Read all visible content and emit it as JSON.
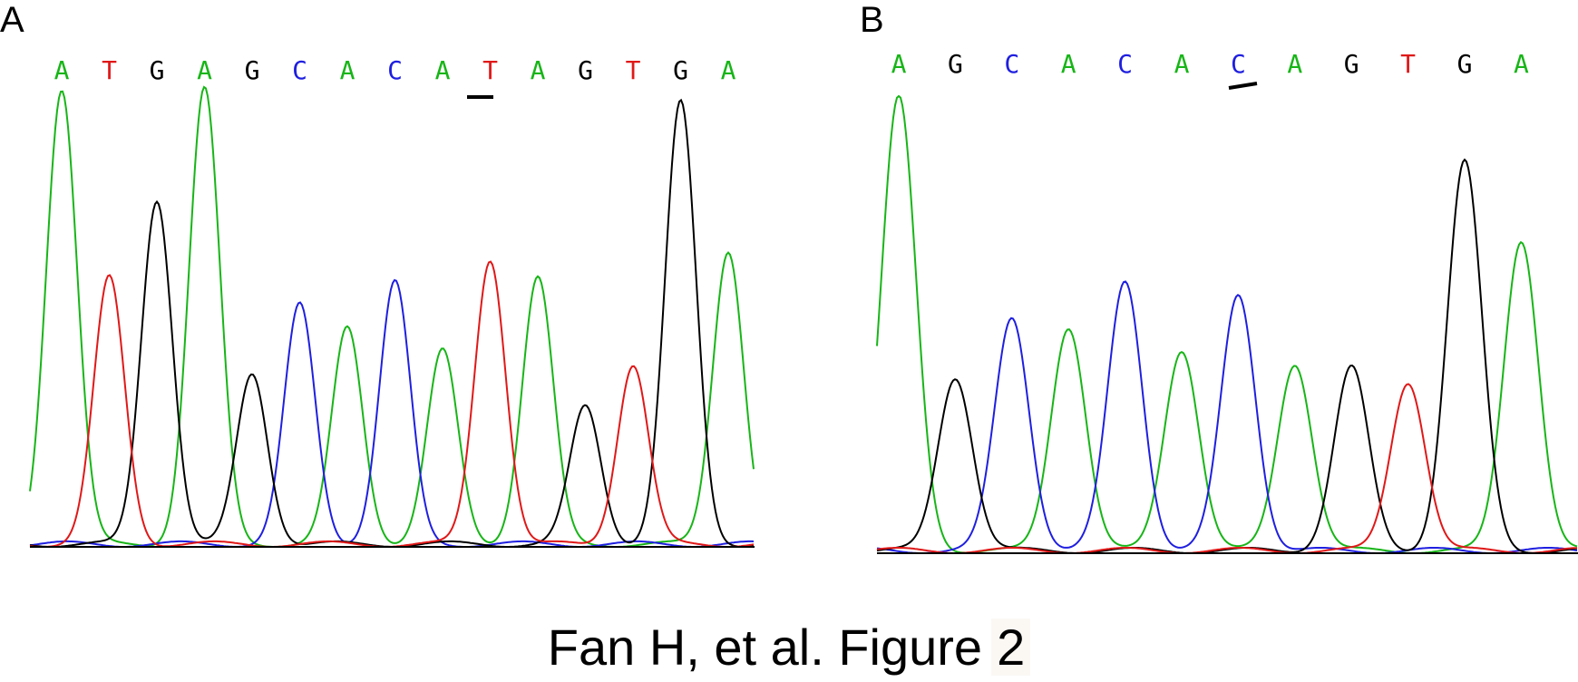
{
  "colors": {
    "A": "#17b517",
    "T": "#e01818",
    "G": "#000000",
    "C": "#1f1fe0"
  },
  "caption": {
    "text": "Fan H, et al. Figure",
    "number": "2"
  },
  "chart_data": [
    {
      "type": "line",
      "panel": "A",
      "bases": [
        "A",
        "T",
        "G",
        "A",
        "G",
        "C",
        "A",
        "C",
        "A",
        "T",
        "A",
        "G",
        "T",
        "G",
        "A"
      ],
      "peak_heights": [
        0.99,
        0.58,
        0.75,
        0.99,
        0.37,
        0.52,
        0.47,
        0.57,
        0.42,
        0.62,
        0.58,
        0.3,
        0.39,
        0.96,
        0.64
      ],
      "highlighted_base_index": 9
    },
    {
      "type": "line",
      "panel": "B",
      "bases": [
        "A",
        "G",
        "C",
        "A",
        "C",
        "A",
        "C",
        "A",
        "G",
        "T",
        "G",
        "A"
      ],
      "peak_heights": [
        0.99,
        0.38,
        0.51,
        0.49,
        0.59,
        0.44,
        0.56,
        0.41,
        0.4,
        0.37,
        0.85,
        0.68
      ],
      "highlighted_base_index": 6
    }
  ]
}
